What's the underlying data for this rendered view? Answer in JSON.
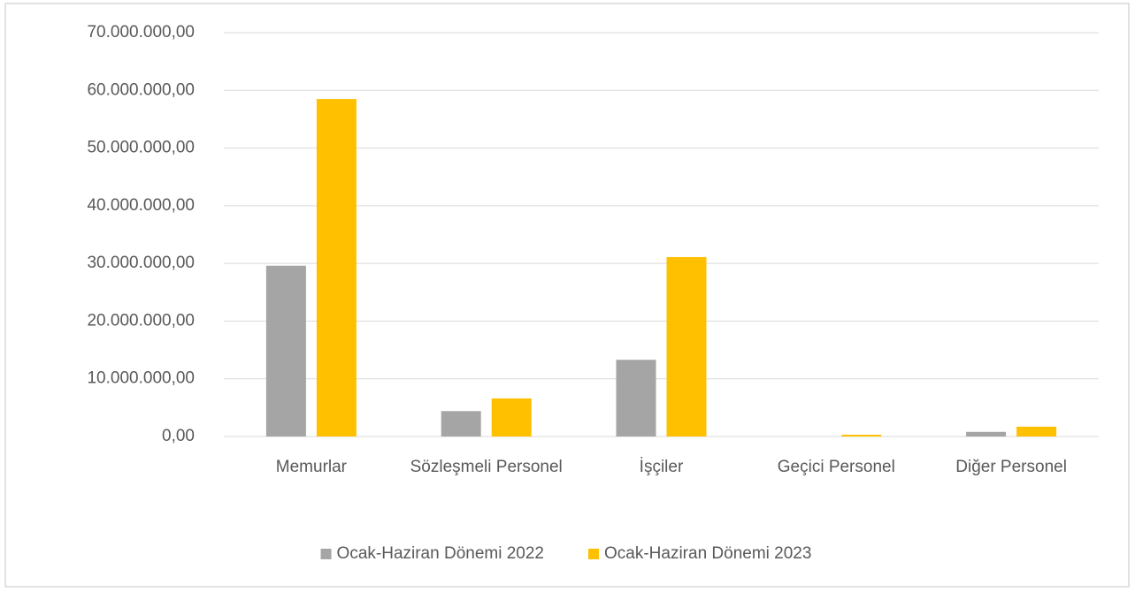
{
  "chart_data": {
    "type": "bar",
    "categories": [
      "Memurlar",
      "Sözleşmeli Personel",
      "İşçiler",
      "Geçici Personel",
      "Diğer Personel"
    ],
    "series": [
      {
        "name": "Ocak-Haziran Dönemi 2022",
        "color": "#a5a5a5",
        "values": [
          29600000,
          4400000,
          13300000,
          0,
          800000
        ]
      },
      {
        "name": "Ocak-Haziran Dönemi 2023",
        "color": "#ffc000",
        "values": [
          58500000,
          6600000,
          31100000,
          300000,
          1700000
        ]
      }
    ],
    "ylim": [
      0,
      70000000
    ],
    "yticks": [
      {
        "value": 0,
        "label": "0,00"
      },
      {
        "value": 10000000,
        "label": "10.000.000,00"
      },
      {
        "value": 20000000,
        "label": "20.000.000,00"
      },
      {
        "value": 30000000,
        "label": "30.000.000,00"
      },
      {
        "value": 40000000,
        "label": "40.000.000,00"
      },
      {
        "value": 50000000,
        "label": "50.000.000,00"
      },
      {
        "value": 60000000,
        "label": "60.000.000,00"
      },
      {
        "value": 70000000,
        "label": "70.000.000,00"
      }
    ],
    "grid": true,
    "legend": "bottom"
  }
}
